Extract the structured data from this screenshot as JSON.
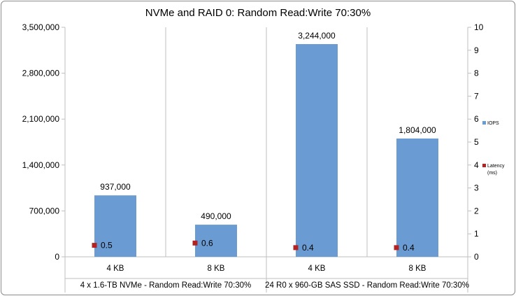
{
  "chart_data": {
    "type": "bar",
    "title": "NVMe and RAID 0: Random Read:Write 70:30%",
    "categories": [
      "4 KB",
      "8 KB",
      "4 KB",
      "8 KB"
    ],
    "groups": [
      {
        "label": "4 x 1.6-TB NVMe - Random Read:Write 70:30%",
        "span": 2
      },
      {
        "label": "24 R0 x 960-GB SAS SSD - Random Read:Write 70:30%",
        "span": 2
      }
    ],
    "series": [
      {
        "name": "IOPS",
        "axis": "left",
        "marker": "bar",
        "color": "#6a9bd2",
        "values": [
          937000,
          490000,
          3244000,
          1804000
        ],
        "labels": [
          "937,000",
          "490,000",
          "3,244,000",
          "1,804,000"
        ]
      },
      {
        "name": "Latency (ms)",
        "name_lines": [
          "Latency",
          "(ms)"
        ],
        "axis": "right",
        "marker": "square",
        "color": "#b22222",
        "values": [
          0.5,
          0.6,
          0.4,
          0.4
        ],
        "labels": [
          "0.5",
          "0.6",
          "0.4",
          "0.4"
        ]
      }
    ],
    "y_left": {
      "range": [
        0,
        3500000
      ],
      "ticks": [
        0,
        700000,
        1400000,
        2100000,
        2800000,
        3500000
      ],
      "tick_labels": [
        "0",
        "700,000",
        "1,400,000",
        "2,100,000",
        "2,800,000",
        "3,500,000"
      ]
    },
    "y_right": {
      "range": [
        0,
        10
      ],
      "ticks": [
        0,
        1,
        2,
        3,
        4,
        5,
        6,
        7,
        8,
        9,
        10
      ],
      "tick_labels": [
        "0",
        "1",
        "2",
        "3",
        "4",
        "5",
        "6",
        "7",
        "8",
        "9",
        "10"
      ]
    },
    "grid": "vertical",
    "legend_position": "right"
  }
}
